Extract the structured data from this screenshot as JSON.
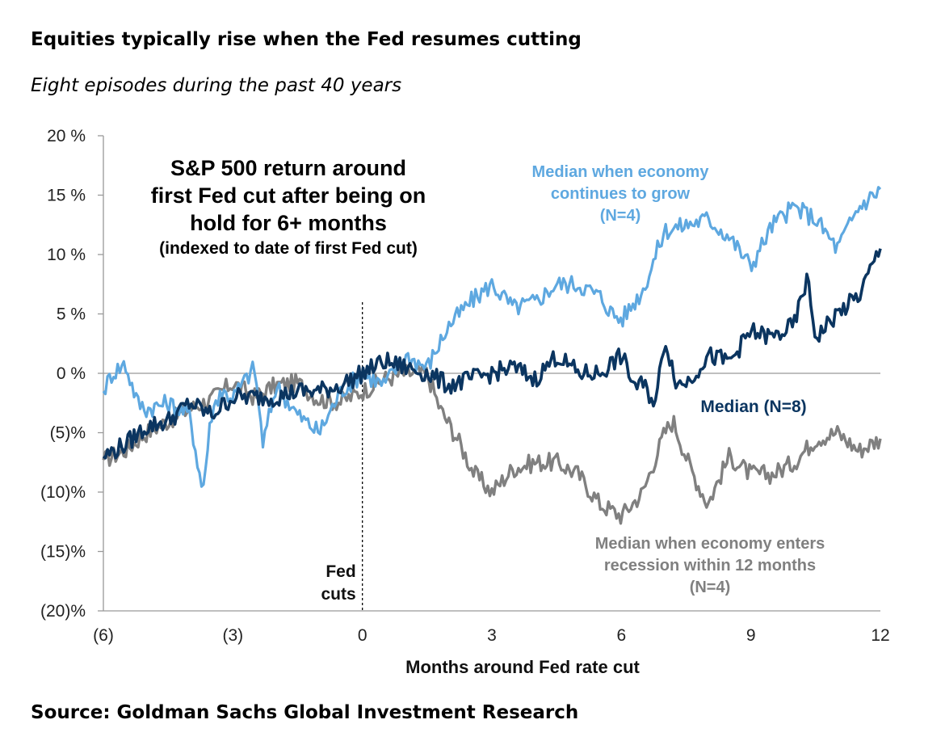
{
  "header": {
    "title": "Equities typically rise when the Fed resumes cutting",
    "subtitle": "Eight episodes during the past 40 years"
  },
  "footer": {
    "source": "Source: Goldman Sachs Global Investment Research"
  },
  "colors": {
    "light_blue": "#5ea8e0",
    "dark_navy": "#0b3560",
    "gray": "#808080",
    "axis": "#999999"
  },
  "chart_data": {
    "type": "line",
    "title": "S&P 500 return around first Fed cut after being on hold for 6+ months",
    "title_lines": [
      "S&P 500 return around",
      "first Fed cut after being on",
      "hold for 6+ months"
    ],
    "subtitle": "(indexed to date of first Fed cut)",
    "xlabel": "Months around Fed rate cut",
    "ylabel": "",
    "xlim": [
      -6,
      12
    ],
    "ylim": [
      -20,
      20
    ],
    "x_ticks": [
      -6,
      -3,
      0,
      3,
      6,
      9,
      12
    ],
    "x_tick_labels": [
      "(6)",
      "(3)",
      "0",
      "3",
      "6",
      "9",
      "12"
    ],
    "y_ticks": [
      20,
      15,
      10,
      5,
      0,
      -5,
      -10,
      -15,
      -20
    ],
    "y_tick_labels": [
      "20 %",
      "15 %",
      "10 %",
      "5 %",
      "0 %",
      "(5)%",
      "(10)%",
      "(15)%",
      "(20)%"
    ],
    "event_marker": {
      "x": 0,
      "label_lines": [
        "Fed",
        "cuts"
      ]
    },
    "series": [
      {
        "name": "Median when economy enters recession within 12 months (N=4)",
        "label_lines": [
          "Median when economy  enters",
          "recession within 12 months",
          "(N=4)"
        ],
        "color": "#808080",
        "x": [
          -6,
          -5.5,
          -5,
          -4.5,
          -4,
          -3.5,
          -3,
          -2.5,
          -2,
          -1.5,
          -1,
          -0.5,
          0,
          0.5,
          1,
          1.5,
          1.8,
          2.2,
          2.6,
          3,
          3.5,
          4,
          4.5,
          5,
          5.5,
          6,
          6.5,
          7,
          7.2,
          7.6,
          8,
          8.5,
          9,
          9.5,
          10,
          10.5,
          11,
          11.5,
          12
        ],
        "values": [
          -7.3,
          -6.5,
          -5,
          -4,
          -3,
          -2.2,
          -0.8,
          -2,
          -1,
          -0.8,
          -2.2,
          -2.4,
          -1.5,
          -0.5,
          0,
          0,
          -3,
          -5.5,
          -8.5,
          -10,
          -8,
          -7.5,
          -7.5,
          -8.5,
          -11,
          -12,
          -10,
          -5,
          -4,
          -8,
          -11,
          -7,
          -8.5,
          -8.5,
          -7.5,
          -5.5,
          -5,
          -6.5,
          -5.5
        ]
      },
      {
        "name": "Median when economy continues to grow (N=4)",
        "label_lines": [
          "Median when economy",
          "continues to grow",
          "(N=4)"
        ],
        "color": "#5ea8e0",
        "x": [
          -6,
          -5.8,
          -5.5,
          -5.2,
          -5,
          -4.5,
          -4,
          -3.7,
          -3.5,
          -3.3,
          -3,
          -2.5,
          -2.3,
          -2,
          -1.5,
          -1,
          -0.5,
          0,
          0.5,
          1,
          1.5,
          2,
          2.5,
          3,
          3.5,
          4,
          4.5,
          5,
          5.5,
          5.8,
          6,
          6.5,
          7,
          7.5,
          8,
          8.5,
          9,
          9.5,
          10,
          10.5,
          11,
          11.5,
          12
        ],
        "values": [
          -1.5,
          0,
          0.8,
          -2.5,
          -3,
          -2.5,
          -3.5,
          -10,
          -3.5,
          -1.5,
          -2,
          0.5,
          -6,
          -1,
          -3.5,
          -5,
          -1.5,
          0,
          -1,
          1.5,
          0.5,
          4,
          6,
          7.5,
          5.5,
          6,
          7.5,
          7.5,
          6.5,
          5,
          4.5,
          7,
          12,
          12.5,
          13,
          11.5,
          9,
          12.5,
          14,
          13,
          10.5,
          14,
          15.5
        ]
      },
      {
        "name": "Median (N=8)",
        "label_lines": [
          "Median (N=8)"
        ],
        "color": "#0b3560",
        "x": [
          -6,
          -5.5,
          -5,
          -4.5,
          -4,
          -3.5,
          -3,
          -2.5,
          -2,
          -1.5,
          -1,
          -0.5,
          0,
          0.5,
          1,
          1.5,
          2,
          2.5,
          3,
          3.5,
          4,
          4.5,
          5,
          5.5,
          6,
          6.3,
          6.5,
          6.8,
          7,
          7.3,
          7.6,
          8,
          8.5,
          9,
          9.5,
          10,
          10.3,
          10.5,
          11,
          11.5,
          12
        ],
        "values": [
          -7,
          -6,
          -4.5,
          -4,
          -2.5,
          -3.5,
          -2,
          -2,
          -2,
          -1.5,
          -1.5,
          -1,
          0,
          1,
          0.5,
          0,
          -1,
          -0.5,
          0,
          0.5,
          -0.5,
          1.5,
          0,
          0,
          1.5,
          -1,
          -1,
          -2.5,
          3,
          -1,
          -0.5,
          1.5,
          1,
          3.5,
          3,
          4,
          8,
          3,
          5,
          6.5,
          10.5
        ]
      }
    ]
  }
}
